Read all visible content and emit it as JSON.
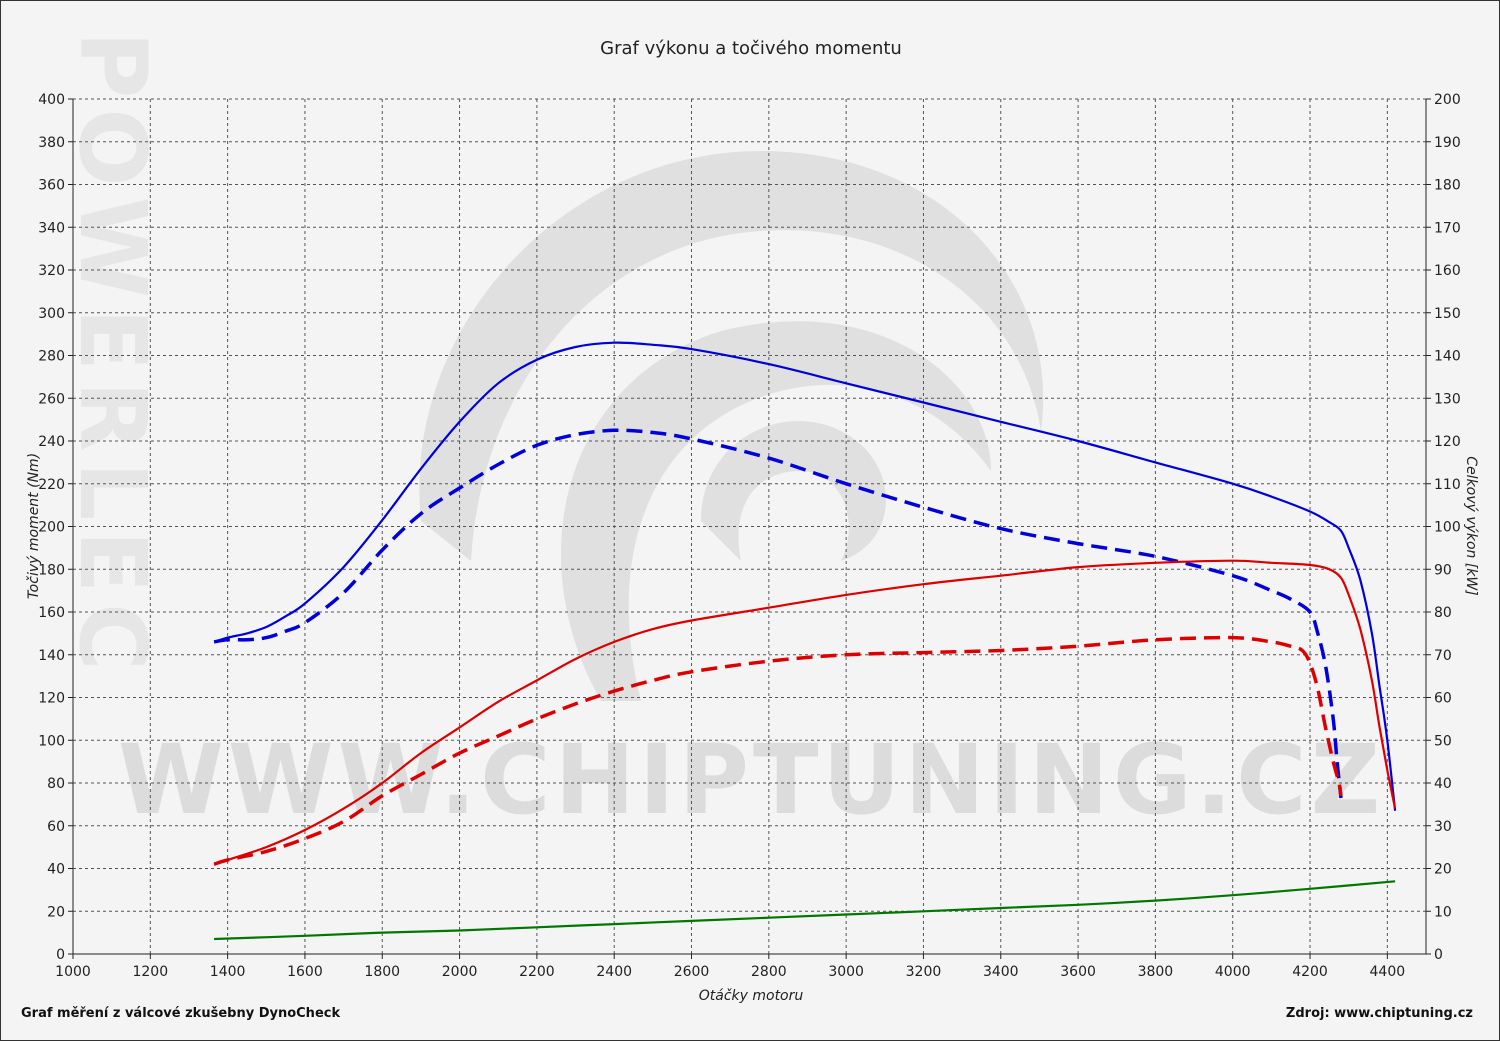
{
  "chart_data": {
    "type": "line",
    "title": "Graf výkonu a točivého momentu",
    "xlabel": "Otáčky motoru",
    "ylabel_left": "Točivý moment (Nm)",
    "ylabel_right": "Celkový výkon [kW]",
    "xlim": [
      1000,
      4500
    ],
    "xticks": [
      1000,
      1200,
      1400,
      1600,
      1800,
      2000,
      2200,
      2400,
      2600,
      2800,
      3000,
      3200,
      3400,
      3600,
      3800,
      4000,
      4200,
      4400
    ],
    "ylim_left": [
      0,
      400
    ],
    "yticks_left": [
      0,
      20,
      40,
      60,
      80,
      100,
      120,
      140,
      160,
      180,
      200,
      220,
      240,
      260,
      280,
      300,
      320,
      340,
      360,
      380,
      400
    ],
    "ylim_right": [
      0,
      200
    ],
    "yticks_right": [
      0,
      10,
      20,
      30,
      40,
      50,
      60,
      70,
      80,
      90,
      100,
      110,
      120,
      130,
      140,
      150,
      160,
      170,
      180,
      190,
      200
    ],
    "grid": true,
    "colors": {
      "tuned_torque": "#0000dd",
      "stock_torque": "#0000dd",
      "tuned_power": "#dd0000",
      "stock_power": "#dd0000",
      "loss": "#007700"
    },
    "series": [
      {
        "key": "tuned_torque",
        "axis": "left",
        "dash": false,
        "x": [
          1365,
          1400,
          1450,
          1500,
          1550,
          1600,
          1700,
          1800,
          1900,
          2000,
          2100,
          2200,
          2300,
          2400,
          2500,
          2600,
          2800,
          3000,
          3200,
          3400,
          3600,
          3800,
          4000,
          4100,
          4200,
          4250,
          4280,
          4300,
          4330,
          4360,
          4380,
          4400,
          4420
        ],
        "values": [
          146,
          148,
          150,
          153,
          158,
          164,
          181,
          203,
          227,
          249,
          267,
          278,
          284,
          286,
          285,
          283,
          276,
          267,
          258,
          249,
          240,
          230,
          220,
          214,
          207,
          202,
          198,
          190,
          175,
          150,
          125,
          100,
          67
        ]
      },
      {
        "key": "stock_torque",
        "axis": "left",
        "dash": true,
        "x": [
          1365,
          1400,
          1450,
          1500,
          1550,
          1600,
          1700,
          1800,
          1900,
          2000,
          2100,
          2200,
          2300,
          2400,
          2500,
          2600,
          2800,
          3000,
          3200,
          3400,
          3600,
          3800,
          4000,
          4100,
          4150,
          4200,
          4220,
          4240,
          4260,
          4270,
          4280
        ],
        "values": [
          146,
          147,
          147,
          148,
          151,
          155,
          169,
          189,
          206,
          218,
          229,
          238,
          243,
          245,
          244,
          241,
          232,
          220,
          209,
          199,
          192,
          186,
          177,
          170,
          166,
          160,
          150,
          135,
          110,
          90,
          73
        ]
      },
      {
        "key": "tuned_power",
        "axis": "right",
        "dash": false,
        "x": [
          1365,
          1400,
          1500,
          1600,
          1700,
          1800,
          1900,
          2000,
          2100,
          2200,
          2300,
          2400,
          2500,
          2600,
          2800,
          3000,
          3200,
          3400,
          3600,
          3800,
          4000,
          4100,
          4200,
          4250,
          4280,
          4300,
          4330,
          4360,
          4380,
          4400,
          4420
        ],
        "values": [
          21,
          22,
          25,
          29,
          34,
          40,
          47,
          53,
          59,
          64,
          69,
          73,
          76,
          78,
          81,
          84,
          86.5,
          88.5,
          90.5,
          91.5,
          92,
          91.5,
          91,
          90,
          88,
          84,
          76,
          64,
          53,
          43,
          34
        ]
      },
      {
        "key": "stock_power",
        "axis": "right",
        "dash": true,
        "x": [
          1365,
          1400,
          1500,
          1600,
          1700,
          1800,
          1900,
          2000,
          2100,
          2200,
          2300,
          2400,
          2500,
          2600,
          2800,
          3000,
          3200,
          3400,
          3600,
          3800,
          4000,
          4100,
          4150,
          4180,
          4200,
          4220,
          4240,
          4260,
          4275,
          4280
        ],
        "values": [
          21,
          22,
          24,
          27,
          31,
          37,
          42,
          47,
          51,
          55,
          58.5,
          61.5,
          64,
          66,
          68.5,
          70,
          70.5,
          71,
          72,
          73.5,
          74,
          73,
          72,
          71,
          68,
          62,
          53,
          45,
          40,
          37
        ]
      },
      {
        "key": "loss",
        "axis": "left",
        "dash": false,
        "x": [
          1365,
          1600,
          1800,
          2000,
          2200,
          2400,
          2600,
          2800,
          3000,
          3200,
          3400,
          3600,
          3800,
          4000,
          4200,
          4420
        ],
        "values": [
          7,
          8.5,
          10,
          11,
          12.5,
          14,
          15.5,
          17,
          18.5,
          20,
          21.5,
          23,
          25,
          27.5,
          30.5,
          34
        ]
      }
    ]
  },
  "footer": {
    "left": "Graf měření z válcové zkušebny DynoCheck",
    "right": "Zdroj: www.chiptuning.cz"
  },
  "watermark": {
    "url_text": "WWW.CHIPTUNING.CZ",
    "side_text": "POWERLEC",
    "logo_icon": "turbo-swirl-logo-icon"
  }
}
